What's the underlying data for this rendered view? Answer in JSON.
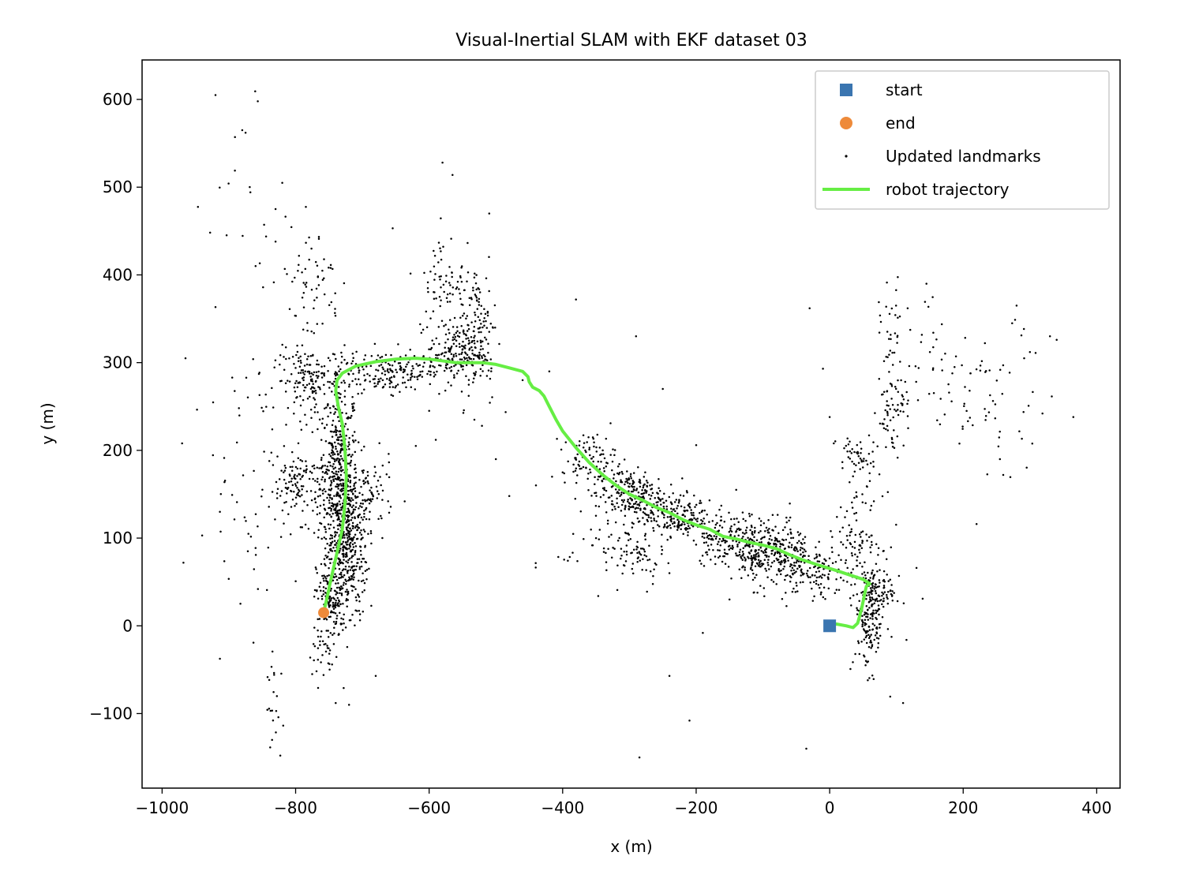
{
  "chart_data": {
    "type": "scatter",
    "title": "Visual-Inertial SLAM with EKF dataset 03",
    "xlabel": "x (m)",
    "ylabel": "y (m)",
    "xlim": [
      -1030,
      435
    ],
    "ylim": [
      -185,
      645
    ],
    "xticks": [
      -1000,
      -800,
      -600,
      -400,
      -200,
      0,
      200,
      400
    ],
    "xtick_labels": [
      "−1000",
      "−800",
      "−600",
      "−400",
      "−200",
      "0",
      "200",
      "400"
    ],
    "yticks": [
      -100,
      0,
      100,
      200,
      300,
      400,
      500,
      600
    ],
    "ytick_labels": [
      "−100",
      "0",
      "100",
      "200",
      "300",
      "400",
      "500",
      "600"
    ],
    "grid": false,
    "legend_position": "upper-right",
    "legend": [
      {
        "label": "start",
        "marker": "square",
        "color": "#3a75b0"
      },
      {
        "label": "end",
        "marker": "circle",
        "color": "#ee8a3a"
      },
      {
        "label": "Updated landmarks",
        "marker": "dot",
        "color": "#000000"
      },
      {
        "label": "robot trajectory",
        "marker": "line",
        "color": "#66ee44"
      }
    ],
    "series": [
      {
        "name": "start",
        "kind": "marker",
        "shape": "square",
        "color": "#3a75b0",
        "points": [
          [
            0,
            0
          ]
        ]
      },
      {
        "name": "end",
        "kind": "marker",
        "shape": "circle",
        "color": "#ee8a3a",
        "points": [
          [
            -758,
            15
          ]
        ]
      },
      {
        "name": "robot trajectory",
        "kind": "line",
        "color": "#66ee44",
        "points": [
          [
            0,
            0
          ],
          [
            10,
            2
          ],
          [
            25,
            0
          ],
          [
            35,
            -2
          ],
          [
            42,
            3
          ],
          [
            48,
            20
          ],
          [
            52,
            35
          ],
          [
            55,
            45
          ],
          [
            60,
            48
          ],
          [
            50,
            53
          ],
          [
            30,
            58
          ],
          [
            10,
            63
          ],
          [
            -20,
            70
          ],
          [
            -40,
            75
          ],
          [
            -60,
            81
          ],
          [
            -80,
            88
          ],
          [
            -100,
            92
          ],
          [
            -120,
            95
          ],
          [
            -140,
            99
          ],
          [
            -160,
            102
          ],
          [
            -180,
            110
          ],
          [
            -200,
            115
          ],
          [
            -220,
            121
          ],
          [
            -240,
            129
          ],
          [
            -260,
            135
          ],
          [
            -280,
            143
          ],
          [
            -300,
            150
          ],
          [
            -320,
            160
          ],
          [
            -340,
            172
          ],
          [
            -360,
            186
          ],
          [
            -380,
            203
          ],
          [
            -400,
            222
          ],
          [
            -410,
            235
          ],
          [
            -420,
            250
          ],
          [
            -428,
            262
          ],
          [
            -435,
            268
          ],
          [
            -445,
            272
          ],
          [
            -450,
            278
          ],
          [
            -452,
            284
          ],
          [
            -460,
            290
          ],
          [
            -480,
            294
          ],
          [
            -500,
            298
          ],
          [
            -520,
            300
          ],
          [
            -560,
            300
          ],
          [
            -600,
            304
          ],
          [
            -620,
            305
          ],
          [
            -650,
            304
          ],
          [
            -680,
            301
          ],
          [
            -710,
            296
          ],
          [
            -730,
            288
          ],
          [
            -738,
            280
          ],
          [
            -740,
            268
          ],
          [
            -736,
            250
          ],
          [
            -730,
            230
          ],
          [
            -726,
            200
          ],
          [
            -724,
            170
          ],
          [
            -726,
            140
          ],
          [
            -730,
            110
          ],
          [
            -736,
            90
          ],
          [
            -742,
            70
          ],
          [
            -748,
            50
          ],
          [
            -752,
            35
          ],
          [
            -758,
            15
          ]
        ]
      },
      {
        "name": "Updated landmarks",
        "kind": "scatter",
        "color": "#000000",
        "clusters": [
          {
            "cx": -735,
            "cy": 160,
            "sx": 14,
            "sy": 60,
            "n": 520
          },
          {
            "cx": -720,
            "cy": 90,
            "sx": 14,
            "sy": 40,
            "n": 300
          },
          {
            "cx": -745,
            "cy": 30,
            "sx": 12,
            "sy": 25,
            "n": 140
          },
          {
            "cx": -780,
            "cy": 280,
            "sx": 25,
            "sy": 18,
            "n": 150
          },
          {
            "cx": -790,
            "cy": 160,
            "sx": 25,
            "sy": 20,
            "n": 140
          },
          {
            "cx": -690,
            "cy": 150,
            "sx": 18,
            "sy": 20,
            "n": 80
          },
          {
            "cx": -660,
            "cy": 290,
            "sx": 45,
            "sy": 12,
            "n": 200
          },
          {
            "cx": -560,
            "cy": 310,
            "sx": 20,
            "sy": 15,
            "n": 150
          },
          {
            "cx": -525,
            "cy": 330,
            "sx": 14,
            "sy": 40,
            "n": 120
          },
          {
            "cx": -570,
            "cy": 390,
            "sx": 25,
            "sy": 30,
            "n": 90
          },
          {
            "cx": -780,
            "cy": 390,
            "sx": 25,
            "sy": 35,
            "n": 60
          },
          {
            "cx": -360,
            "cy": 190,
            "sx": 20,
            "sy": 15,
            "n": 90
          },
          {
            "cx": -300,
            "cy": 150,
            "sx": 25,
            "sy": 15,
            "n": 220
          },
          {
            "cx": -230,
            "cy": 125,
            "sx": 25,
            "sy": 12,
            "n": 170
          },
          {
            "cx": -150,
            "cy": 100,
            "sx": 28,
            "sy": 15,
            "n": 170
          },
          {
            "cx": -80,
            "cy": 85,
            "sx": 25,
            "sy": 20,
            "n": 220
          },
          {
            "cx": -110,
            "cy": 75,
            "sx": 15,
            "sy": 6,
            "n": 50
          },
          {
            "cx": -30,
            "cy": 60,
            "sx": 25,
            "sy": 15,
            "n": 120
          },
          {
            "cx": 40,
            "cy": 100,
            "sx": 20,
            "sy": 25,
            "n": 100
          },
          {
            "cx": 60,
            "cy": 10,
            "sx": 12,
            "sy": 30,
            "n": 180
          },
          {
            "cx": 75,
            "cy": 40,
            "sx": 15,
            "sy": 10,
            "n": 70
          },
          {
            "cx": -330,
            "cy": 90,
            "sx": 40,
            "sy": 20,
            "n": 60
          },
          {
            "cx": -280,
            "cy": 75,
            "sx": 15,
            "sy": 15,
            "n": 40
          },
          {
            "cx": 40,
            "cy": 190,
            "sx": 15,
            "sy": 15,
            "n": 50
          },
          {
            "cx": 95,
            "cy": 240,
            "sx": 12,
            "sy": 20,
            "n": 60
          },
          {
            "cx": 95,
            "cy": 320,
            "sx": 10,
            "sy": 35,
            "n": 40
          },
          {
            "cx": 250,
            "cy": 260,
            "sx": 40,
            "sy": 40,
            "n": 50
          },
          {
            "cx": 170,
            "cy": 300,
            "sx": 30,
            "sy": 40,
            "n": 40
          },
          {
            "cx": -860,
            "cy": 150,
            "sx": 40,
            "sy": 80,
            "n": 60
          },
          {
            "cx": -760,
            "cy": -30,
            "sx": 10,
            "sy": 15,
            "n": 30
          },
          {
            "cx": -830,
            "cy": -90,
            "sx": 10,
            "sy": 25,
            "n": 20
          },
          {
            "cx": -860,
            "cy": 470,
            "sx": 40,
            "sy": 70,
            "n": 20
          }
        ],
        "outliers": [
          [
            -920,
            605
          ],
          [
            -880,
            565
          ],
          [
            -875,
            562
          ],
          [
            -820,
            505
          ],
          [
            -830,
            475
          ],
          [
            -965,
            305
          ],
          [
            -970,
            208
          ],
          [
            -968,
            72
          ],
          [
            -940,
            103
          ],
          [
            -895,
            283
          ],
          [
            -830,
            438
          ],
          [
            -860,
            410
          ],
          [
            -580,
            528
          ],
          [
            -565,
            514
          ],
          [
            -510,
            470
          ],
          [
            -380,
            372
          ],
          [
            -290,
            330
          ],
          [
            -200,
            206
          ],
          [
            -180,
            143
          ],
          [
            -140,
            155
          ],
          [
            -240,
            -57
          ],
          [
            -210,
            -108
          ],
          [
            -285,
            -150
          ],
          [
            -35,
            -140
          ],
          [
            -30,
            362
          ],
          [
            -10,
            293
          ],
          [
            0,
            238
          ],
          [
            30,
            210
          ],
          [
            110,
            -88
          ],
          [
            115,
            -16
          ],
          [
            145,
            390
          ],
          [
            300,
            312
          ],
          [
            330,
            330
          ],
          [
            340,
            326
          ],
          [
            365,
            238
          ],
          [
            280,
            365
          ],
          [
            260,
            172
          ],
          [
            220,
            116
          ],
          [
            130,
            66
          ],
          [
            -680,
            -57
          ],
          [
            -720,
            -90
          ],
          [
            -740,
            -88
          ],
          [
            -420,
            290
          ],
          [
            -400,
            175
          ],
          [
            -480,
            148
          ],
          [
            -610,
            290
          ],
          [
            -620,
            205
          ],
          [
            -600,
            245
          ],
          [
            -590,
            212
          ],
          [
            -440,
            160
          ],
          [
            -460,
            280
          ],
          [
            -500,
            190
          ],
          [
            -340,
            200
          ],
          [
            -350,
            100
          ],
          [
            -240,
            60
          ],
          [
            -190,
            -8
          ],
          [
            -150,
            30
          ],
          [
            -250,
            270
          ]
        ]
      }
    ]
  }
}
